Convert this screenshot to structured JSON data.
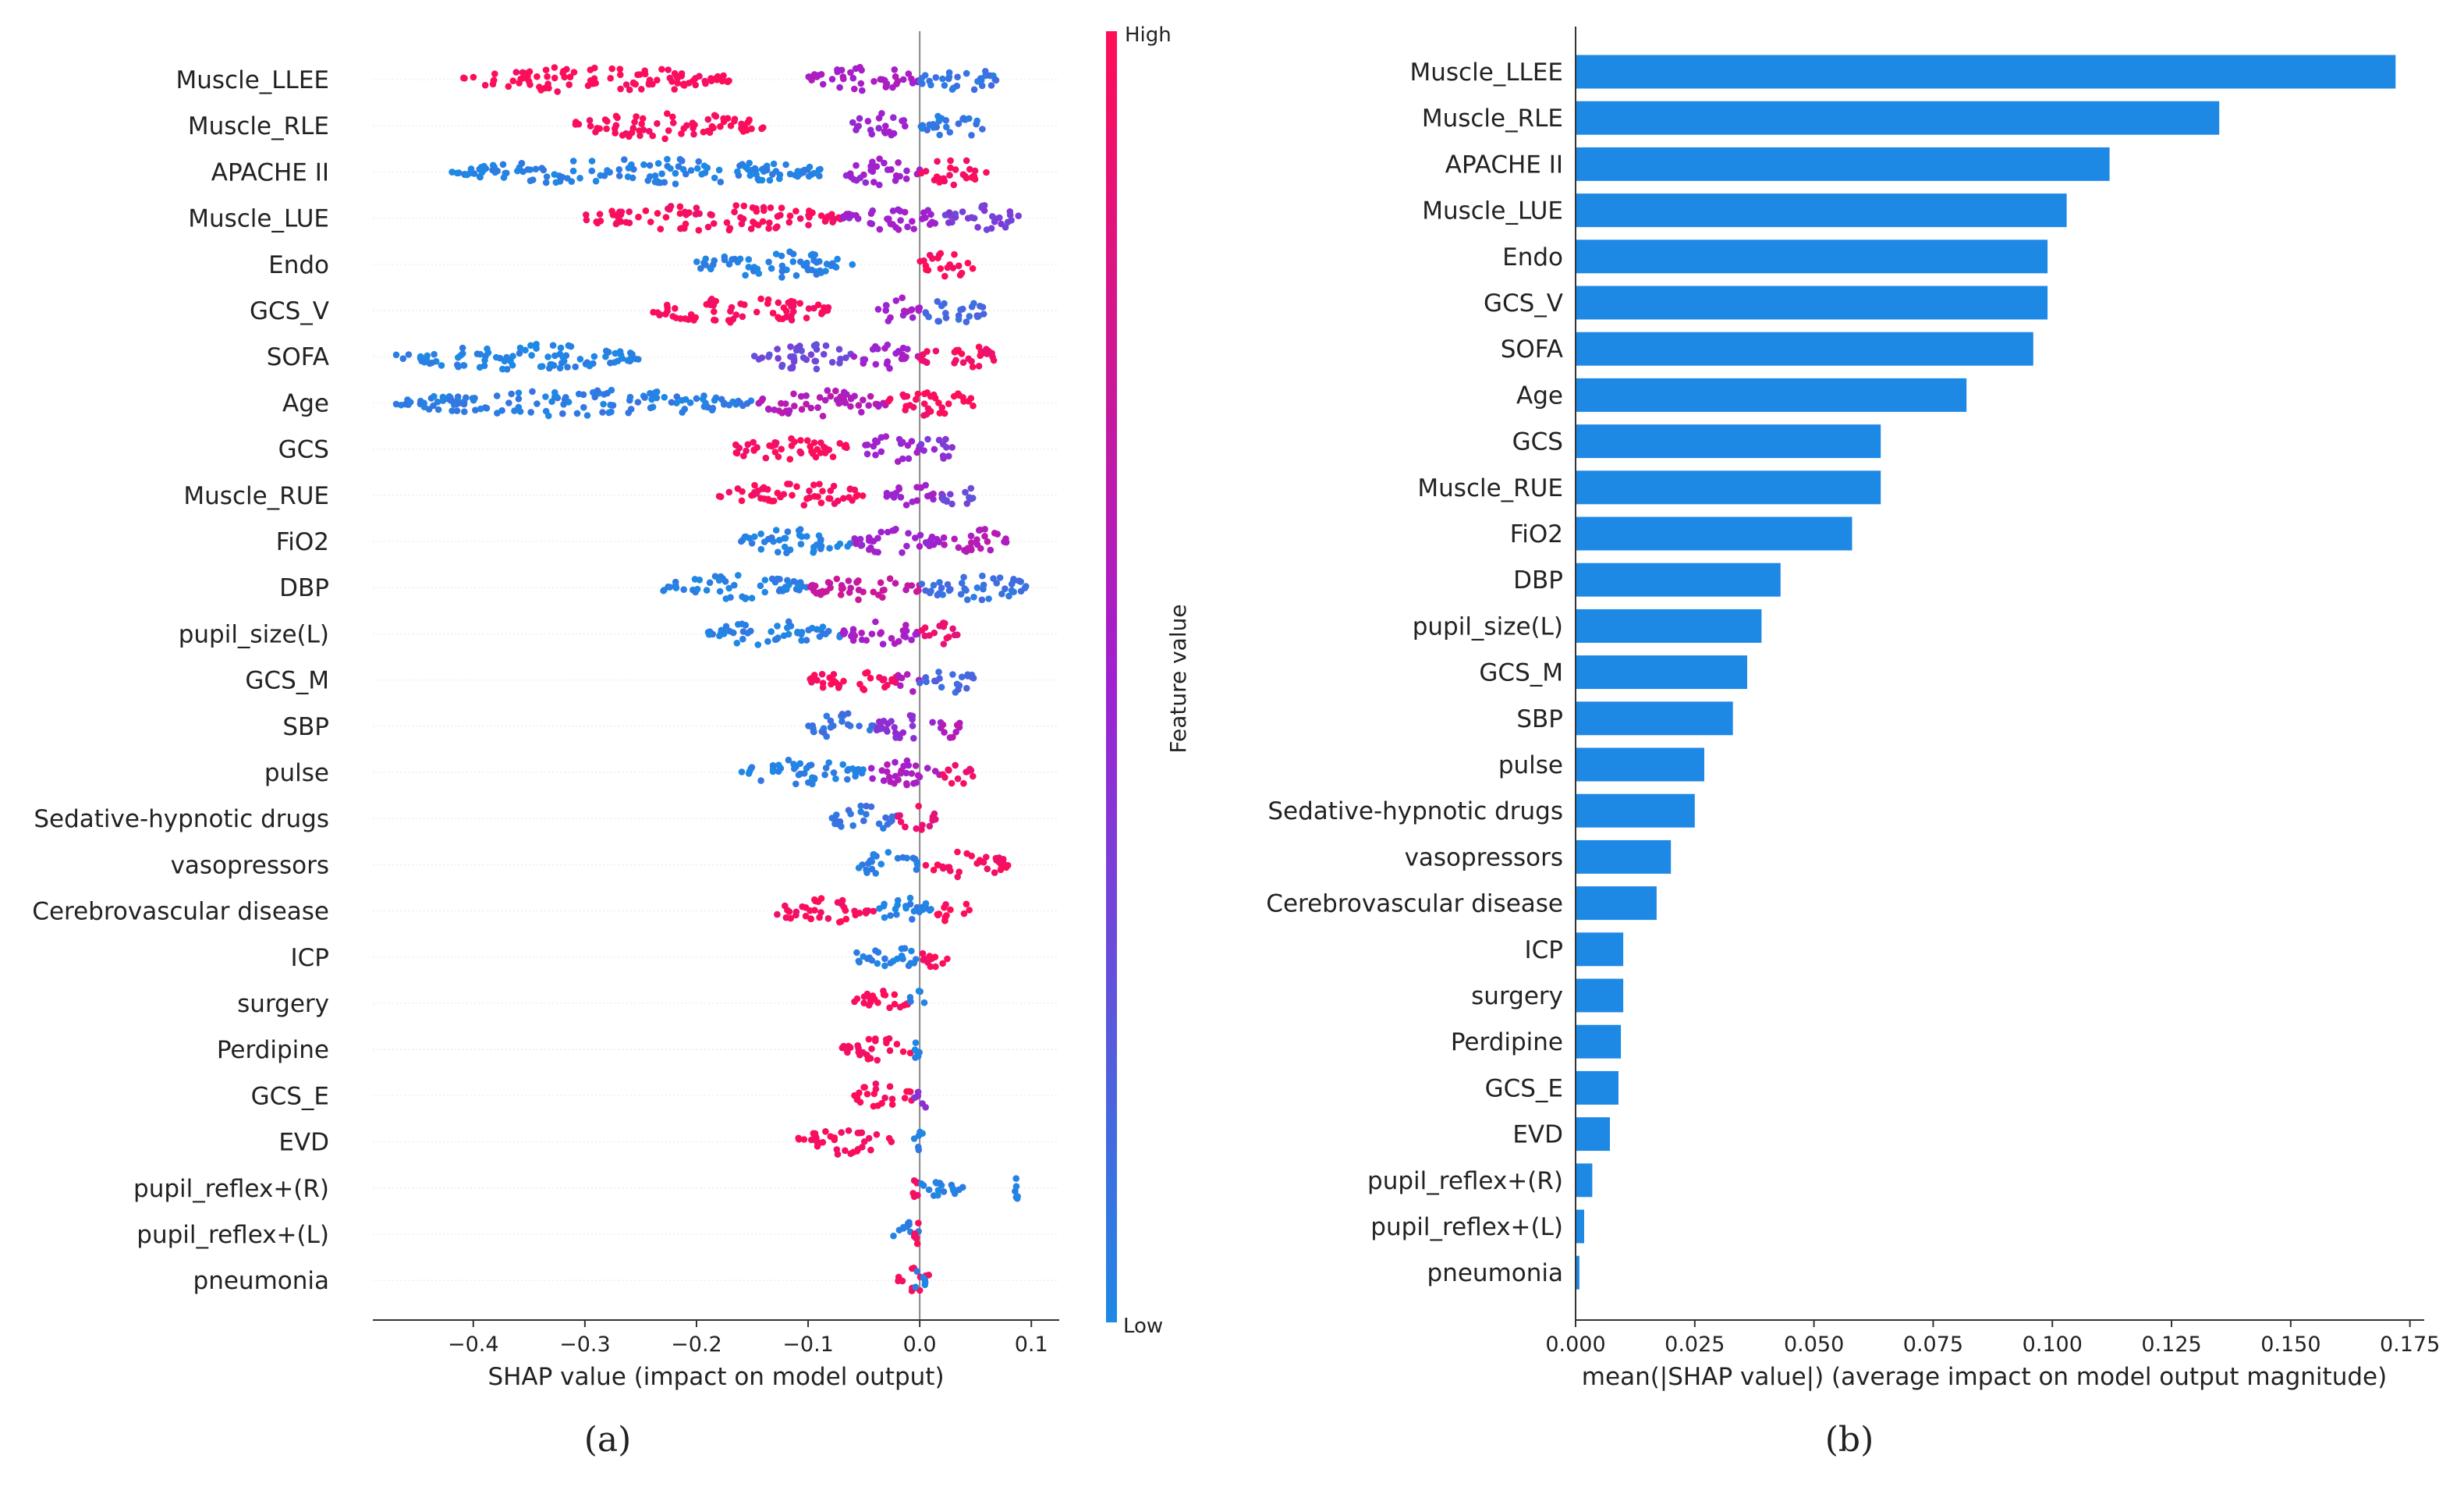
{
  "chart_data": [
    {
      "type": "scatter",
      "subtype": "shap-beeswarm",
      "panel_label": "(a)",
      "xlabel": "SHAP value (impact on model output)",
      "xlim": [
        -0.49,
        0.125
      ],
      "xticks": [
        -0.4,
        -0.3,
        -0.2,
        -0.1,
        0.0,
        0.1
      ],
      "xtick_labels": [
        "−0.4",
        "−0.3",
        "−0.2",
        "−0.1",
        "0.0",
        "0.1"
      ],
      "colorbar": {
        "label": "Feature value",
        "high": "High",
        "low": "Low",
        "color_high": "#ff0d57",
        "color_low": "#1e88e5",
        "color_mid": "#a020d0"
      },
      "features": [
        {
          "name": "Muscle_LLEE",
          "ranges": [
            [
              -0.41,
              -0.17,
              0.98
            ],
            [
              -0.1,
              0.0,
              0.55
            ],
            [
              0.0,
              0.07,
              0.1
            ]
          ]
        },
        {
          "name": "Muscle_RLE",
          "ranges": [
            [
              -0.31,
              -0.14,
              0.97
            ],
            [
              -0.06,
              -0.01,
              0.5
            ],
            [
              0.0,
              0.06,
              0.08
            ]
          ]
        },
        {
          "name": "APACHE II",
          "ranges": [
            [
              -0.42,
              -0.08,
              0.03
            ],
            [
              -0.07,
              0.0,
              0.5
            ],
            [
              0.0,
              0.06,
              0.95
            ]
          ]
        },
        {
          "name": "Muscle_LUE",
          "ranges": [
            [
              -0.3,
              -0.07,
              0.97
            ],
            [
              -0.07,
              0.02,
              0.5
            ],
            [
              0.02,
              0.09,
              0.35
            ]
          ]
        },
        {
          "name": "Endo",
          "ranges": [
            [
              -0.2,
              -0.06,
              0.03
            ],
            [
              0.0,
              0.05,
              0.98
            ]
          ]
        },
        {
          "name": "GCS_V",
          "ranges": [
            [
              -0.24,
              -0.08,
              0.97
            ],
            [
              -0.04,
              0.0,
              0.5
            ],
            [
              0.0,
              0.06,
              0.15
            ]
          ]
        },
        {
          "name": "SOFA",
          "ranges": [
            [
              -0.47,
              -0.25,
              0.02
            ],
            [
              -0.15,
              -0.06,
              0.3
            ],
            [
              -0.06,
              0.0,
              0.5
            ],
            [
              0.0,
              0.07,
              0.95
            ]
          ]
        },
        {
          "name": "Age",
          "ranges": [
            [
              -0.47,
              -0.15,
              0.05
            ],
            [
              -0.15,
              -0.03,
              0.6
            ],
            [
              -0.03,
              0.05,
              0.97
            ]
          ]
        },
        {
          "name": "GCS",
          "ranges": [
            [
              -0.17,
              -0.06,
              0.97
            ],
            [
              -0.05,
              0.0,
              0.5
            ],
            [
              0.0,
              0.03,
              0.4
            ]
          ]
        },
        {
          "name": "Muscle_RUE",
          "ranges": [
            [
              -0.18,
              -0.05,
              0.97
            ],
            [
              -0.03,
              0.02,
              0.5
            ],
            [
              0.02,
              0.05,
              0.3
            ]
          ]
        },
        {
          "name": "FiO2",
          "ranges": [
            [
              -0.16,
              -0.06,
              0.03
            ],
            [
              -0.06,
              0.02,
              0.5
            ],
            [
              0.02,
              0.08,
              0.6
            ]
          ]
        },
        {
          "name": "DBP",
          "ranges": [
            [
              -0.23,
              -0.1,
              0.03
            ],
            [
              -0.1,
              0.0,
              0.7
            ],
            [
              0.0,
              0.1,
              0.1
            ]
          ]
        },
        {
          "name": "pupil_size(L)",
          "ranges": [
            [
              -0.19,
              -0.07,
              0.03
            ],
            [
              -0.07,
              0.0,
              0.55
            ],
            [
              0.0,
              0.035,
              0.9
            ]
          ]
        },
        {
          "name": "GCS_M",
          "ranges": [
            [
              -0.1,
              -0.02,
              0.97
            ],
            [
              -0.02,
              0.0,
              0.6
            ],
            [
              0.0,
              0.05,
              0.15
            ]
          ]
        },
        {
          "name": "SBP",
          "ranges": [
            [
              -0.1,
              -0.04,
              0.1
            ],
            [
              -0.04,
              0.02,
              0.45
            ],
            [
              0.02,
              0.04,
              0.6
            ]
          ]
        },
        {
          "name": "pulse",
          "ranges": [
            [
              -0.16,
              -0.05,
              0.03
            ],
            [
              -0.05,
              0.02,
              0.55
            ],
            [
              0.02,
              0.05,
              0.9
            ]
          ]
        },
        {
          "name": "Sedative-hypnotic drugs",
          "ranges": [
            [
              -0.08,
              -0.02,
              0.1
            ],
            [
              -0.02,
              0.015,
              0.9
            ]
          ]
        },
        {
          "name": "vasopressors",
          "ranges": [
            [
              -0.055,
              0.0,
              0.03
            ],
            [
              0.0,
              0.08,
              0.97
            ]
          ]
        },
        {
          "name": "Cerebrovascular disease",
          "ranges": [
            [
              -0.13,
              -0.04,
              0.97
            ],
            [
              -0.04,
              0.015,
              0.03
            ],
            [
              0.015,
              0.045,
              0.97
            ]
          ]
        },
        {
          "name": "ICP",
          "ranges": [
            [
              -0.06,
              0.0,
              0.03
            ],
            [
              0.0,
              0.025,
              0.97
            ]
          ]
        },
        {
          "name": "surgery",
          "ranges": [
            [
              -0.06,
              -0.01,
              0.97
            ],
            [
              -0.01,
              0.005,
              0.05
            ]
          ]
        },
        {
          "name": "Perdipine",
          "ranges": [
            [
              -0.07,
              -0.005,
              0.97
            ],
            [
              -0.005,
              0.0,
              0.05
            ]
          ]
        },
        {
          "name": "GCS_E",
          "ranges": [
            [
              -0.06,
              -0.005,
              0.97
            ],
            [
              -0.005,
              0.01,
              0.4
            ]
          ]
        },
        {
          "name": "EVD",
          "ranges": [
            [
              -0.11,
              -0.025,
              0.97
            ],
            [
              -0.005,
              0.006,
              0.03
            ]
          ]
        },
        {
          "name": "pupil_reflex+(R)",
          "ranges": [
            [
              -0.008,
              0.0,
              0.97
            ],
            [
              0.0,
              0.04,
              0.03
            ],
            [
              0.085,
              0.088,
              0.03
            ]
          ]
        },
        {
          "name": "pupil_reflex+(L)",
          "ranges": [
            [
              -0.025,
              0.0,
              0.03
            ],
            [
              -0.005,
              0.005,
              0.97
            ]
          ]
        },
        {
          "name": "pneumonia",
          "ranges": [
            [
              -0.02,
              0.01,
              0.97
            ],
            [
              -0.005,
              0.005,
              0.03
            ]
          ]
        }
      ]
    },
    {
      "type": "bar",
      "orientation": "horizontal",
      "panel_label": "(b)",
      "xlabel": "mean(|SHAP value|) (average impact on model output magnitude)",
      "xlim": [
        0.0,
        0.178
      ],
      "xticks": [
        0.0,
        0.025,
        0.05,
        0.075,
        0.1,
        0.125,
        0.15,
        0.175
      ],
      "xtick_labels": [
        "0.000",
        "0.025",
        "0.050",
        "0.075",
        "0.100",
        "0.125",
        "0.150",
        "0.175"
      ],
      "bar_color": "#1e88e5",
      "categories": [
        "Muscle_LLEE",
        "Muscle_RLE",
        "APACHE II",
        "Muscle_LUE",
        "Endo",
        "GCS_V",
        "SOFA",
        "Age",
        "GCS",
        "Muscle_RUE",
        "FiO2",
        "DBP",
        "pupil_size(L)",
        "GCS_M",
        "SBP",
        "pulse",
        "Sedative-hypnotic drugs",
        "vasopressors",
        "Cerebrovascular disease",
        "ICP",
        "surgery",
        "Perdipine",
        "GCS_E",
        "EVD",
        "pupil_reflex+(R)",
        "pupil_reflex+(L)",
        "pneumonia"
      ],
      "values": [
        0.172,
        0.135,
        0.112,
        0.103,
        0.099,
        0.099,
        0.096,
        0.082,
        0.064,
        0.064,
        0.058,
        0.043,
        0.039,
        0.036,
        0.033,
        0.027,
        0.025,
        0.02,
        0.017,
        0.01,
        0.01,
        0.0095,
        0.009,
        0.0072,
        0.0035,
        0.0018,
        0.0008
      ]
    }
  ]
}
